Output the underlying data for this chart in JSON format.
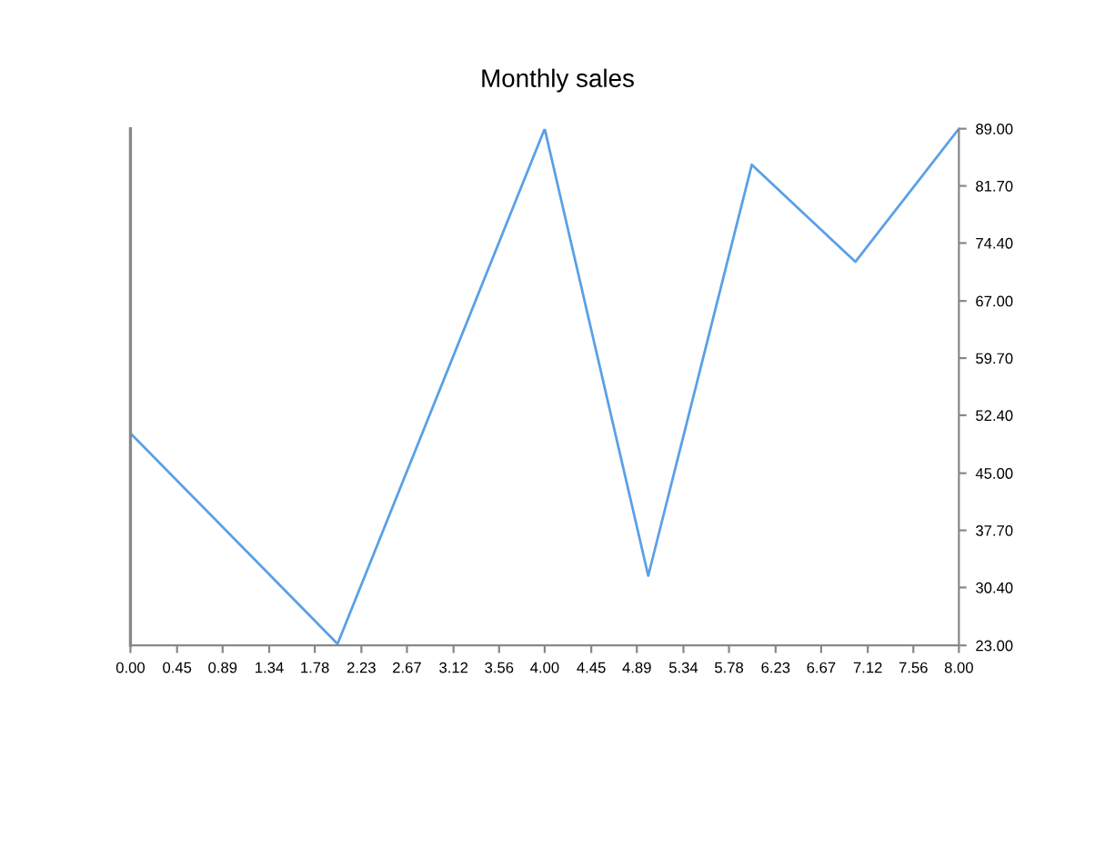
{
  "chart_data": {
    "type": "line",
    "title": "Monthly sales",
    "x": [
      0,
      2,
      4,
      5,
      6,
      7,
      8
    ],
    "series": [
      {
        "color": "#5aa0e6",
        "values": [
          50.1,
          23.2,
          89,
          31.9,
          84.4,
          72.0,
          89
        ]
      }
    ],
    "xlim": [
      0,
      8
    ],
    "xticks": [
      {
        "value": 0,
        "label": "0.00"
      },
      {
        "value": 0.45,
        "label": "0.45"
      },
      {
        "value": 0.89,
        "label": "0.89"
      },
      {
        "value": 1.34,
        "label": "1.34"
      },
      {
        "value": 1.78,
        "label": "1.78"
      },
      {
        "value": 2.23,
        "label": "2.23"
      },
      {
        "value": 2.67,
        "label": "2.67"
      },
      {
        "value": 3.12,
        "label": "3.12"
      },
      {
        "value": 3.56,
        "label": "3.56"
      },
      {
        "value": 4,
        "label": "4.00"
      },
      {
        "value": 4.45,
        "label": "4.45"
      },
      {
        "value": 4.89,
        "label": "4.89"
      },
      {
        "value": 5.34,
        "label": "5.34"
      },
      {
        "value": 5.78,
        "label": "5.78"
      },
      {
        "value": 6.23,
        "label": "6.23"
      },
      {
        "value": 6.67,
        "label": "6.67"
      },
      {
        "value": 7.12,
        "label": "7.12"
      },
      {
        "value": 7.56,
        "label": "7.56"
      },
      {
        "value": 8,
        "label": "8.00"
      }
    ],
    "ylim": [
      23,
      89
    ],
    "yticks": [
      {
        "value": 23,
        "label": "23.00"
      },
      {
        "value": 30.4,
        "label": "30.40"
      },
      {
        "value": 37.7,
        "label": "37.70"
      },
      {
        "value": 45,
        "label": "45.00"
      },
      {
        "value": 52.4,
        "label": "52.40"
      },
      {
        "value": 59.7,
        "label": "59.70"
      },
      {
        "value": 67,
        "label": "67.00"
      },
      {
        "value": 74.4,
        "label": "74.40"
      },
      {
        "value": 81.7,
        "label": "81.70"
      },
      {
        "value": 89,
        "label": "89.00"
      }
    ],
    "grid": false,
    "legend": false,
    "marker": "none",
    "line_style": "solid"
  }
}
